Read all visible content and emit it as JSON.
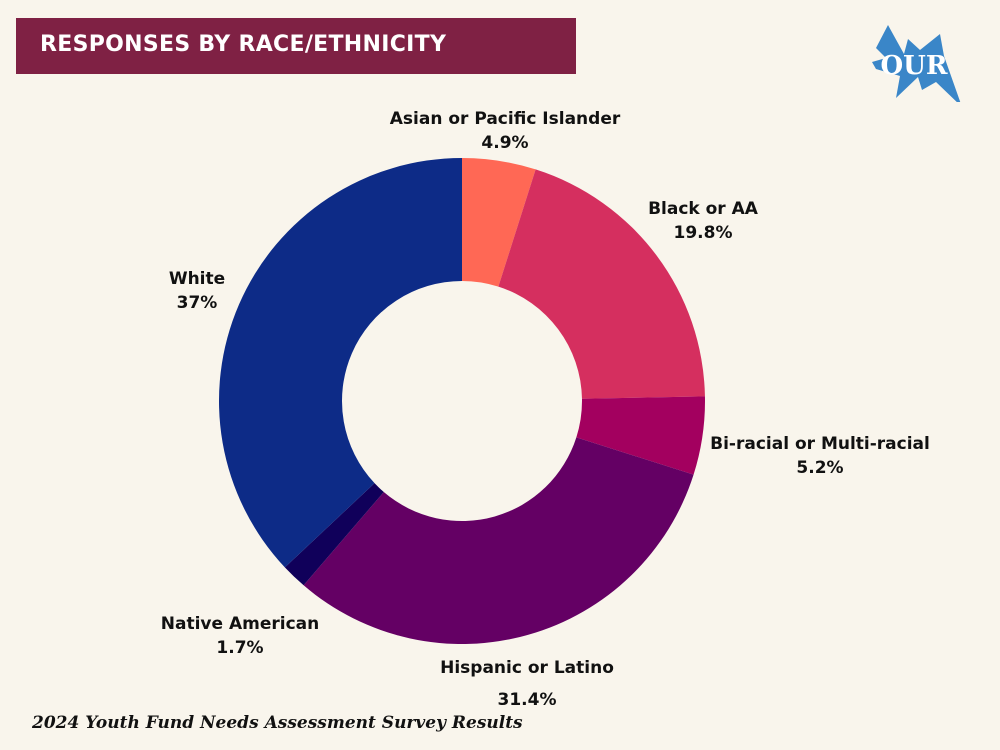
{
  "header": {
    "title": "RESPONSES BY RACE/ETHNICITY",
    "title_bg_color": "#7f2144"
  },
  "logo": {
    "text": "OUR",
    "color": "#3a86c8"
  },
  "footer": {
    "text": "2024 Youth Fund Needs Assessment Survey Results"
  },
  "chart_data": {
    "type": "pie",
    "variant": "donut",
    "title": "Responses by Race/Ethnicity",
    "start": "top",
    "direction": "clockwise",
    "slices": [
      {
        "label": "Asian or Pacific Islander",
        "value": 4.9,
        "value_label": "4.9%",
        "color": "#ff6855"
      },
      {
        "label": "Black or AA",
        "value": 19.8,
        "value_label": "19.8%",
        "color": "#d52f5f"
      },
      {
        "label": "Bi-racial or Multi-racial",
        "value": 5.2,
        "value_label": "5.2%",
        "color": "#a3005f"
      },
      {
        "label": "Hispanic or Latino",
        "value": 31.4,
        "value_label": "31.4%",
        "color": "#640064"
      },
      {
        "label": "Native American",
        "value": 1.7,
        "value_label": "1.7%",
        "color": "#10005a"
      },
      {
        "label": "White",
        "value": 37,
        "value_label": "37%",
        "color": "#0d2b87"
      }
    ],
    "legend": "none"
  }
}
